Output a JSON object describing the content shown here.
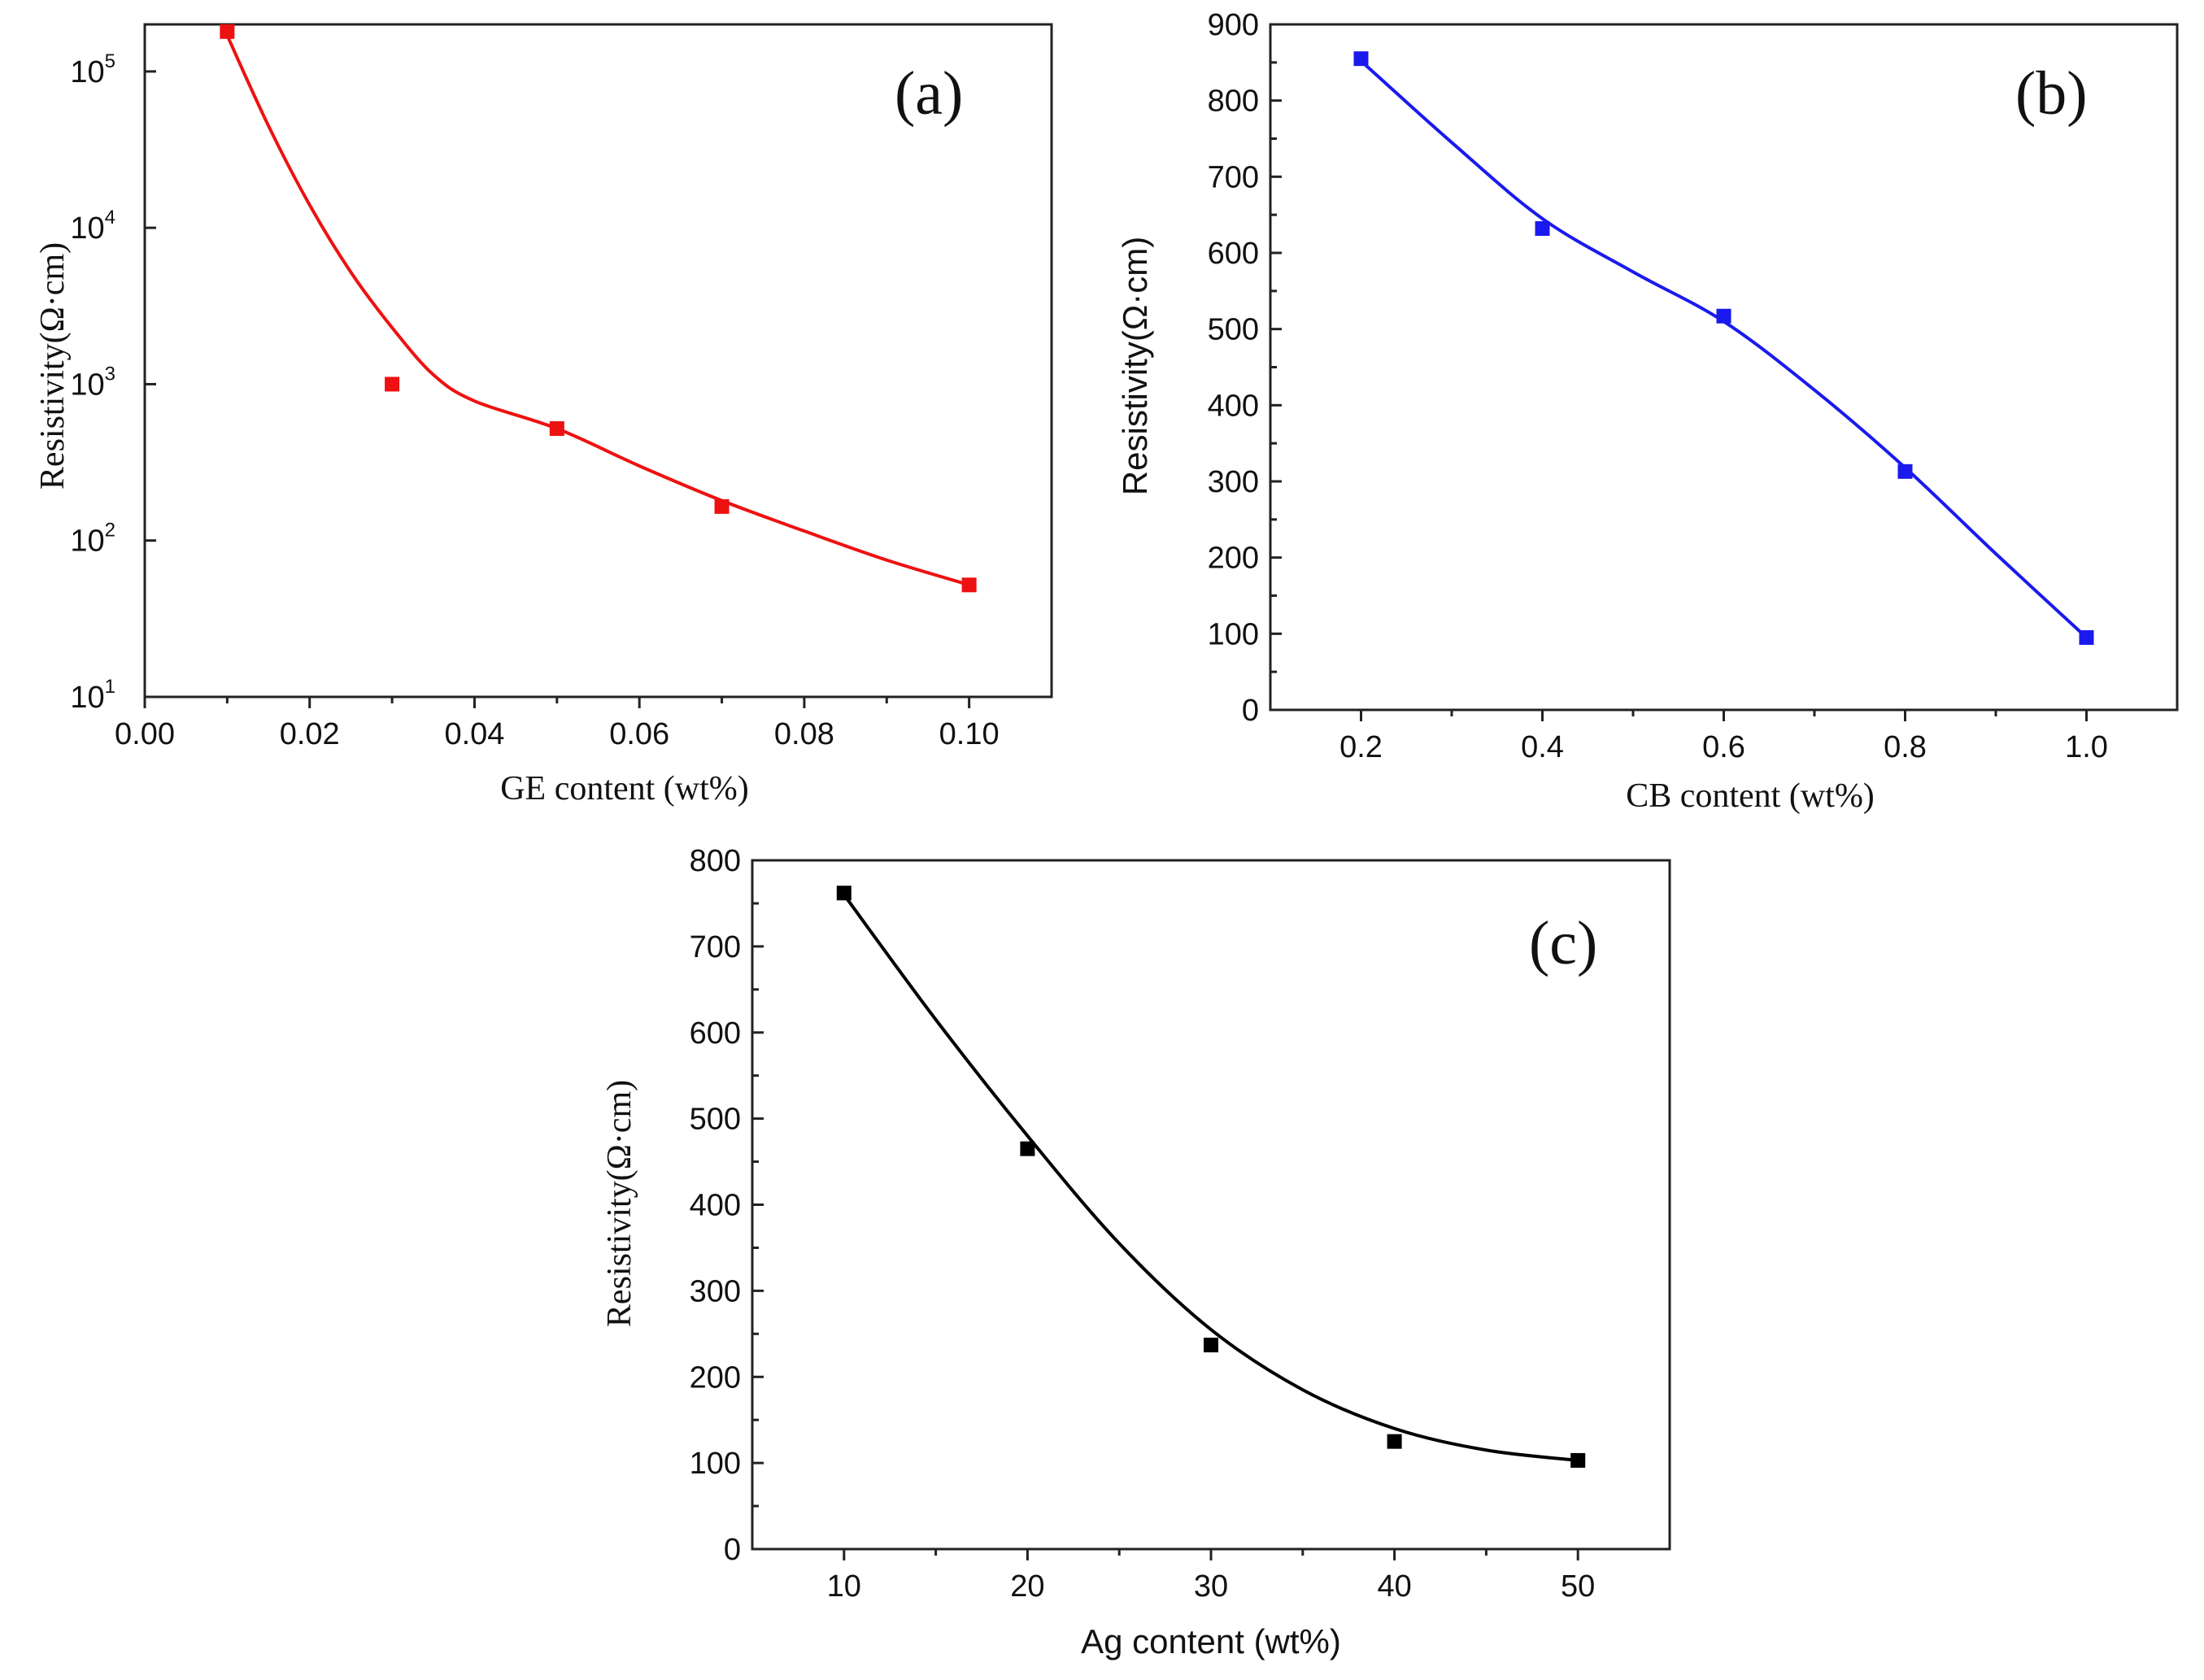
{
  "chart_data": [
    {
      "id": "a",
      "type": "scatter",
      "panel_label": "(a)",
      "xlabel": "GE content (wt%)",
      "ylabel": "Resistivity(Ω·cm)",
      "xlim": [
        0.0,
        0.11
      ],
      "ylim": [
        10,
        200000
      ],
      "yscale": "log",
      "xticks": [
        0.0,
        0.02,
        0.04,
        0.06,
        0.08,
        0.1
      ],
      "xtick_labels": [
        "0.00",
        "0.02",
        "0.04",
        "0.06",
        "0.08",
        "0.10"
      ],
      "yticks": [
        10,
        100,
        1000,
        10000,
        100000
      ],
      "ytick_bases": [
        "10",
        "10",
        "10",
        "10",
        "10"
      ],
      "ytick_exponents": [
        "1",
        "2",
        "3",
        "4",
        "5"
      ],
      "series": [
        {
          "name": "GE",
          "color": "#ee1111",
          "x": [
            0.01,
            0.03,
            0.05,
            0.07,
            0.1
          ],
          "y": [
            180000,
            1000,
            520,
            165,
            52
          ]
        }
      ],
      "fit_curve": {
        "x": [
          0.01,
          0.015,
          0.02,
          0.025,
          0.03,
          0.035,
          0.04,
          0.05,
          0.06,
          0.07,
          0.08,
          0.09,
          0.1
        ],
        "y": [
          170000,
          45000,
          14000,
          5200,
          2300,
          1150,
          780,
          520,
          300,
          180,
          115,
          75,
          52
        ]
      }
    },
    {
      "id": "b",
      "type": "scatter",
      "panel_label": "(b)",
      "xlabel": "CB content (wt%)",
      "ylabel": "Resistivity(Ω·cm)",
      "xlim": [
        0.1,
        1.1
      ],
      "ylim": [
        0,
        900
      ],
      "xticks": [
        0.2,
        0.4,
        0.6,
        0.8,
        1.0
      ],
      "xtick_labels": [
        "0.2",
        "0.4",
        "0.6",
        "0.8",
        "1.0"
      ],
      "yticks": [
        0,
        100,
        200,
        300,
        400,
        500,
        600,
        700,
        800,
        900
      ],
      "ytick_labels": [
        "0",
        "100",
        "200",
        "300",
        "400",
        "500",
        "600",
        "700",
        "800",
        "900"
      ],
      "series": [
        {
          "name": "CB",
          "color": "#1a1aee",
          "x": [
            0.2,
            0.4,
            0.6,
            0.8,
            1.0
          ],
          "y": [
            855,
            632,
            517,
            313,
            95
          ]
        }
      ],
      "fit_curve": {
        "x": [
          0.2,
          0.3,
          0.4,
          0.5,
          0.6,
          0.7,
          0.8,
          0.9,
          1.0
        ],
        "y": [
          852,
          745,
          645,
          575,
          510,
          420,
          318,
          205,
          95
        ]
      }
    },
    {
      "id": "c",
      "type": "scatter",
      "panel_label": "(c)",
      "xlabel": "Ag content (wt%)",
      "ylabel": "Resistivity(Ω·cm)",
      "xlim": [
        5,
        55
      ],
      "ylim": [
        0,
        800
      ],
      "xticks": [
        10,
        20,
        30,
        40,
        50
      ],
      "xtick_labels": [
        "10",
        "20",
        "30",
        "40",
        "50"
      ],
      "yticks": [
        0,
        100,
        200,
        300,
        400,
        500,
        600,
        700,
        800
      ],
      "ytick_labels": [
        "0",
        "100",
        "200",
        "300",
        "400",
        "500",
        "600",
        "700",
        "800"
      ],
      "series": [
        {
          "name": "Ag",
          "color": "#000000",
          "x": [
            10,
            20,
            30,
            40,
            50
          ],
          "y": [
            762,
            465,
            237,
            125,
            103
          ]
        }
      ],
      "fit_curve": {
        "x": [
          10,
          15,
          20,
          25,
          30,
          35,
          40,
          45,
          50
        ],
        "y": [
          760,
          615,
          480,
          355,
          255,
          185,
          140,
          115,
          103
        ]
      }
    }
  ]
}
